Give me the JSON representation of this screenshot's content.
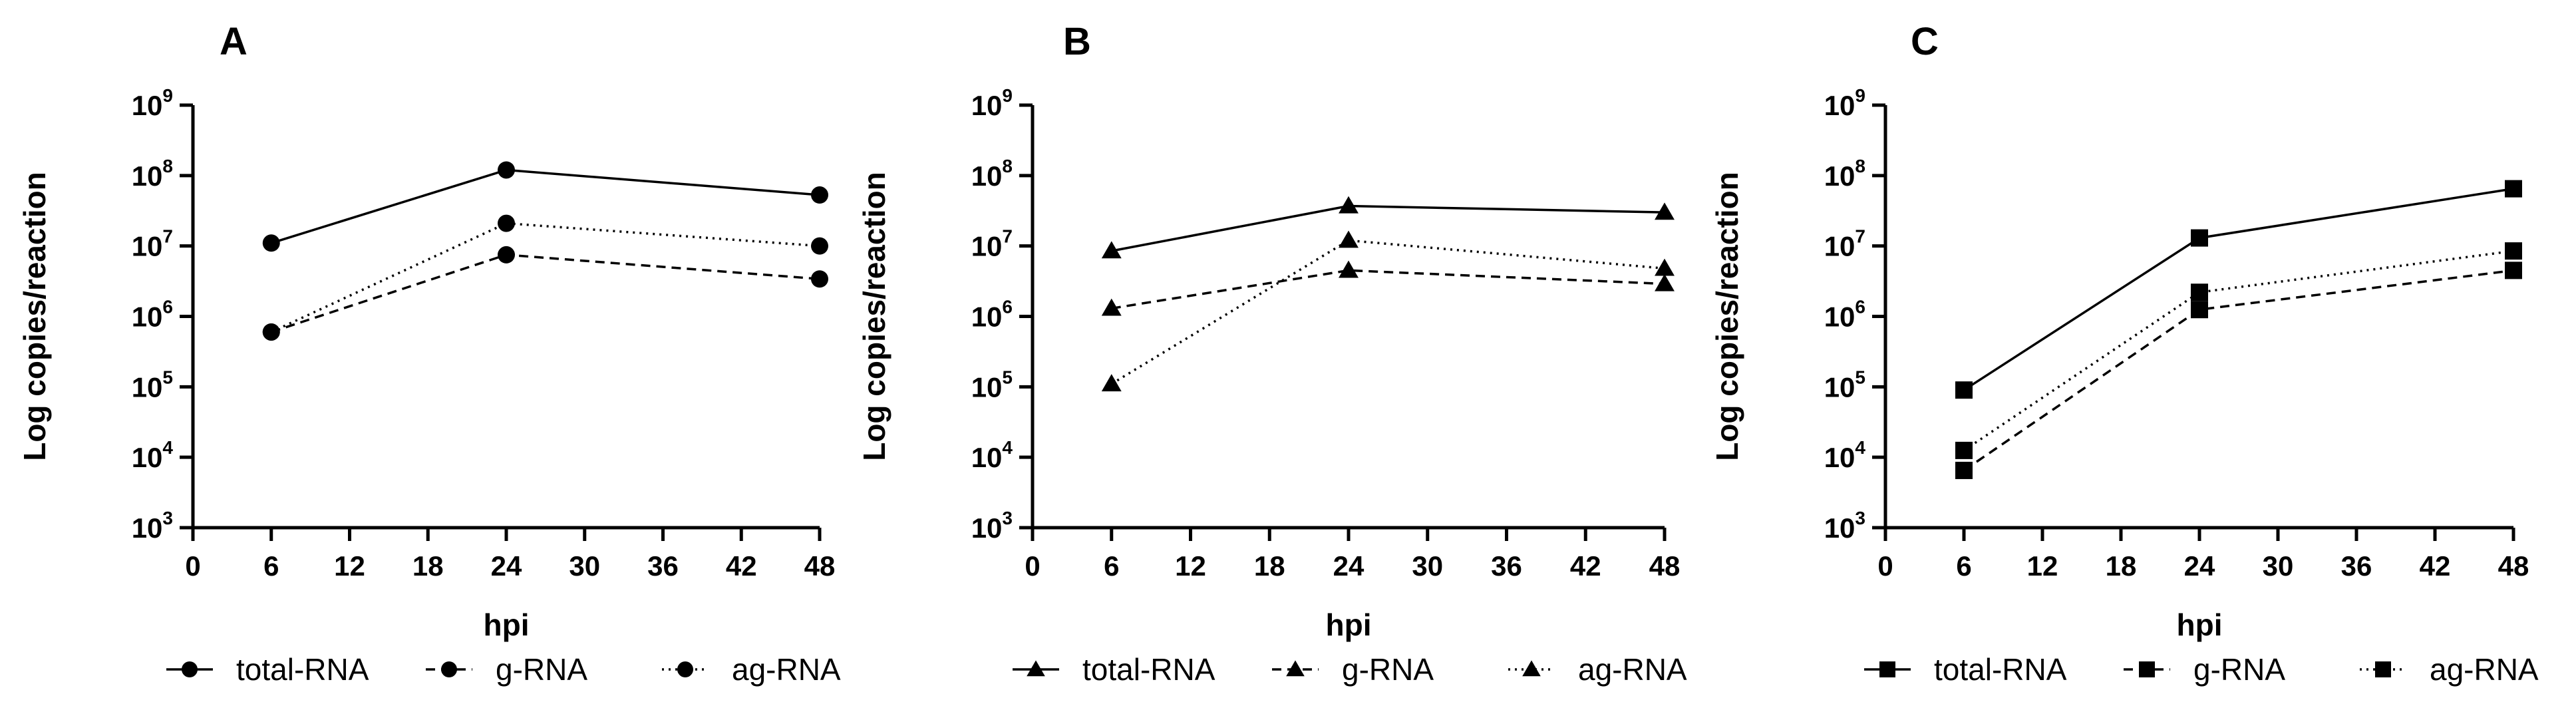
{
  "figure": {
    "x_ticks": [
      "0",
      "6",
      "12",
      "18",
      "24",
      "30",
      "36",
      "42",
      "48"
    ],
    "y_tick_base": "10",
    "y_tick_exponents": [
      "3",
      "4",
      "5",
      "6",
      "7",
      "8",
      "9"
    ]
  },
  "chart_data": [
    {
      "type": "line",
      "panel": "A",
      "title": "A",
      "xlabel": "hpi",
      "ylabel": "Log copies/reaction",
      "xlim": [
        0,
        48
      ],
      "ylim": [
        1000,
        1000000000
      ],
      "yscale": "log",
      "marker": "circle",
      "x": [
        6,
        24,
        48
      ],
      "series": [
        {
          "name": "total-RNA",
          "style": "solid",
          "values": [
            11000000,
            120000000,
            53000000
          ]
        },
        {
          "name": "g-RNA",
          "style": "dashed",
          "values": [
            600000,
            7500000,
            3400000
          ]
        },
        {
          "name": "ag-RNA",
          "style": "dotted",
          "values": [
            600000,
            21000000,
            10000000
          ]
        }
      ]
    },
    {
      "type": "line",
      "panel": "B",
      "title": "B",
      "xlabel": "hpi",
      "ylabel": "Log copies/reaction",
      "xlim": [
        0,
        48
      ],
      "ylim": [
        1000,
        1000000000
      ],
      "yscale": "log",
      "marker": "triangle",
      "x": [
        6,
        24,
        48
      ],
      "series": [
        {
          "name": "total-RNA",
          "style": "solid",
          "values": [
            8500000,
            37000000,
            30000000
          ]
        },
        {
          "name": "g-RNA",
          "style": "dashed",
          "values": [
            1300000,
            4500000,
            2900000
          ]
        },
        {
          "name": "ag-RNA",
          "style": "dotted",
          "values": [
            110000,
            12000000,
            4800000
          ]
        }
      ]
    },
    {
      "type": "line",
      "panel": "C",
      "title": "C",
      "xlabel": "hpi",
      "ylabel": "Log copies/reaction",
      "xlim": [
        0,
        48
      ],
      "ylim": [
        1000,
        1000000000
      ],
      "yscale": "log",
      "marker": "square",
      "x": [
        6,
        24,
        48
      ],
      "series": [
        {
          "name": "total-RNA",
          "style": "solid",
          "values": [
            90000,
            13000000,
            65000000
          ]
        },
        {
          "name": "g-RNA",
          "style": "dashed",
          "values": [
            6500,
            1250000,
            4500000
          ]
        },
        {
          "name": "ag-RNA",
          "style": "dotted",
          "values": [
            12500,
            2200000,
            8500000
          ]
        }
      ]
    }
  ]
}
